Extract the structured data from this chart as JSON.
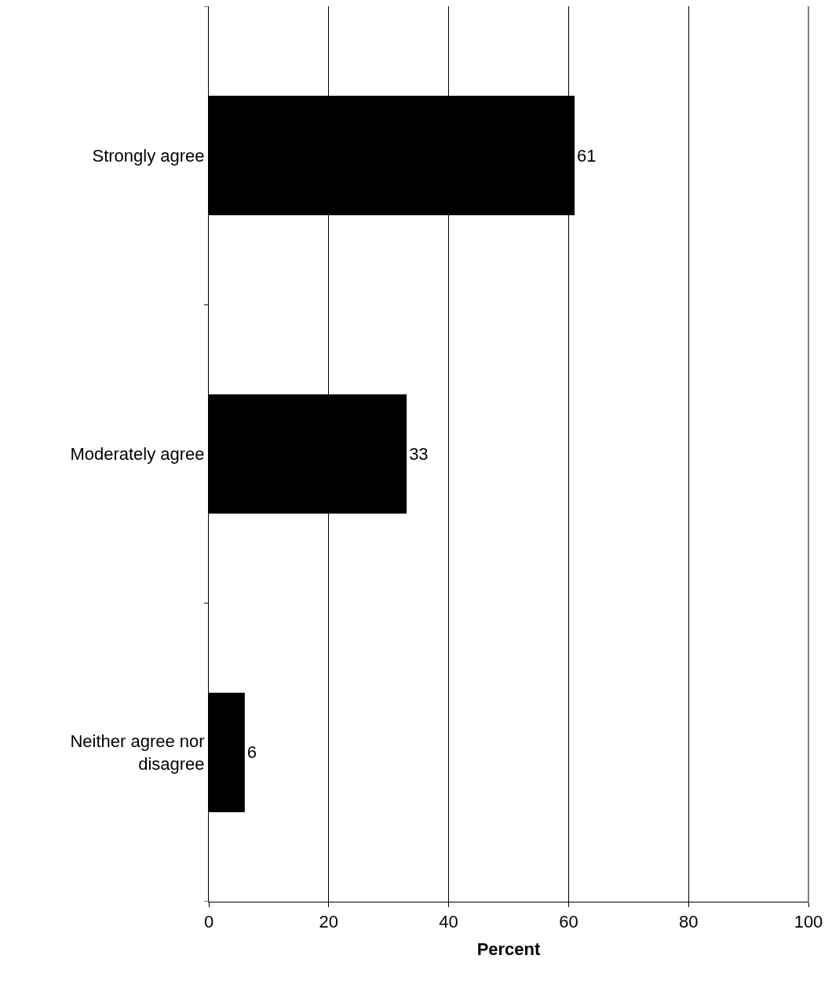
{
  "chart_data": {
    "type": "bar",
    "orientation": "horizontal",
    "categories": [
      "Strongly agree",
      "Moderately agree",
      "Neither agree nor disagree"
    ],
    "values": [
      61,
      33,
      6
    ],
    "color": "#000000",
    "data_labels": true,
    "xlabel": "Percent",
    "xlim": [
      0,
      100
    ],
    "xticks": [
      0,
      20,
      40,
      60,
      80,
      100
    ],
    "grid": "x",
    "legend": false
  }
}
